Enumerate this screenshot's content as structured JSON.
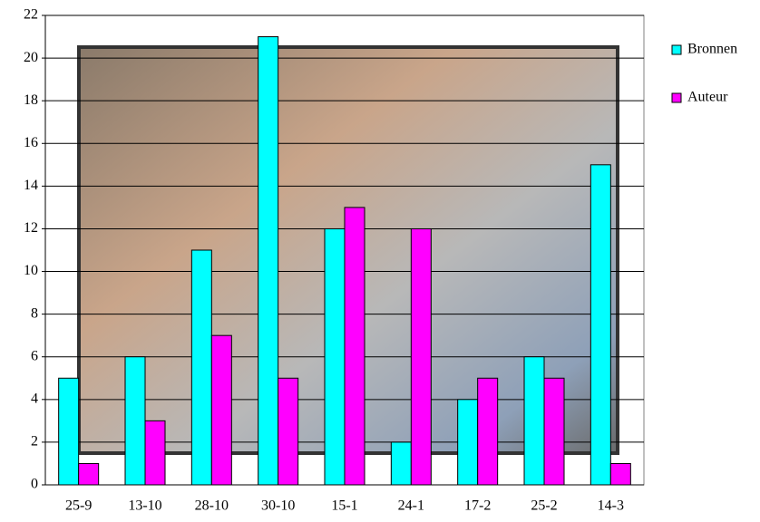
{
  "chart_data": {
    "type": "bar",
    "categories": [
      "25-9",
      "13-10",
      "28-10",
      "30-10",
      "15-1",
      "24-1",
      "17-2",
      "25-2",
      "14-3"
    ],
    "series": [
      {
        "name": "Bronnen",
        "color": "#00ffff",
        "values": [
          5,
          6,
          11,
          21,
          12,
          2,
          4,
          6,
          15
        ]
      },
      {
        "name": "Auteur",
        "color": "#ff00ff",
        "values": [
          1,
          3,
          7,
          5,
          13,
          12,
          5,
          5,
          1
        ]
      }
    ],
    "ylim": [
      0,
      22
    ],
    "yticks": [
      0,
      2,
      4,
      6,
      8,
      10,
      12,
      14,
      16,
      18,
      20,
      22
    ],
    "grid": true,
    "legend": "right"
  }
}
